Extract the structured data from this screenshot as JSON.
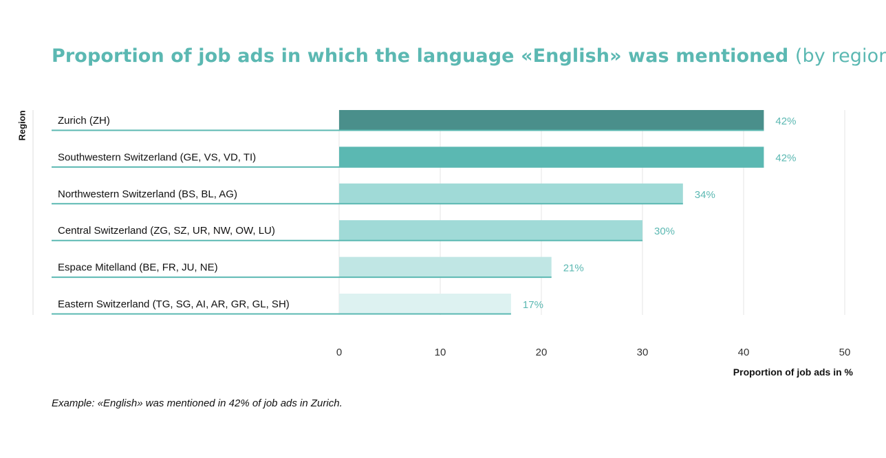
{
  "title": {
    "main": "Proportion of job ads in which the language «English» was mentioned",
    "sub": "(by region)"
  },
  "footnote": "Example: «English» was mentioned in 42% of job ads in Zurich.",
  "colors": {
    "title": "#5bb8b2",
    "accent": "#5bb8b2",
    "underline": "#5bb8b2",
    "grid": "#e6e6e6",
    "axis_line": "#dcdcdc",
    "text": "#111111"
  },
  "chart_data": {
    "type": "bar",
    "orientation": "horizontal",
    "ylabel": "Region",
    "xlabel": "Proportion of job ads in %",
    "xlim": [
      0,
      50
    ],
    "xticks": [
      "0",
      "10",
      "20",
      "30",
      "40",
      "50"
    ],
    "grid": true,
    "categories": [
      "Zurich (ZH)",
      "Southwestern Switzerland (GE, VS, VD, TI)",
      "Northwestern Switzerland (BS, BL, AG)",
      "Central Switzerland (ZG, SZ, UR, NW, OW, LU)",
      "Espace Mitelland (BE, FR, JU, NE)",
      "Eastern Switzerland (TG, SG, AI, AR, GR, GL, SH)"
    ],
    "values": [
      42,
      42,
      34,
      30,
      21,
      17
    ],
    "value_labels": [
      "42%",
      "42%",
      "34%",
      "30%",
      "21%",
      "17%"
    ],
    "bar_colors": [
      "#4a8f8b",
      "#5bb8b2",
      "#a0dad7",
      "#a0dad7",
      "#c0e6e4",
      "#ddf2f1"
    ]
  }
}
